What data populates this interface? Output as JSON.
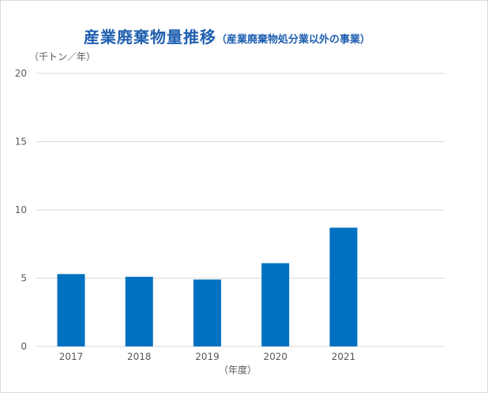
{
  "chart_data": {
    "type": "bar",
    "title": "産業廃棄物量推移",
    "subtitle": "（産業廃棄物処分業以外の事業）",
    "ylabel": "（千トン／年）",
    "xlabel": "（年度）",
    "categories": [
      "2017",
      "2018",
      "2019",
      "2020",
      "2021"
    ],
    "values": [
      5.3,
      5.1,
      4.9,
      6.1,
      8.7
    ],
    "ylim": [
      0,
      20
    ],
    "yticks": [
      0,
      5,
      10,
      15,
      20
    ],
    "grid": true,
    "bar_color": "#0070c0",
    "grid_color": "#d9d9d9"
  }
}
